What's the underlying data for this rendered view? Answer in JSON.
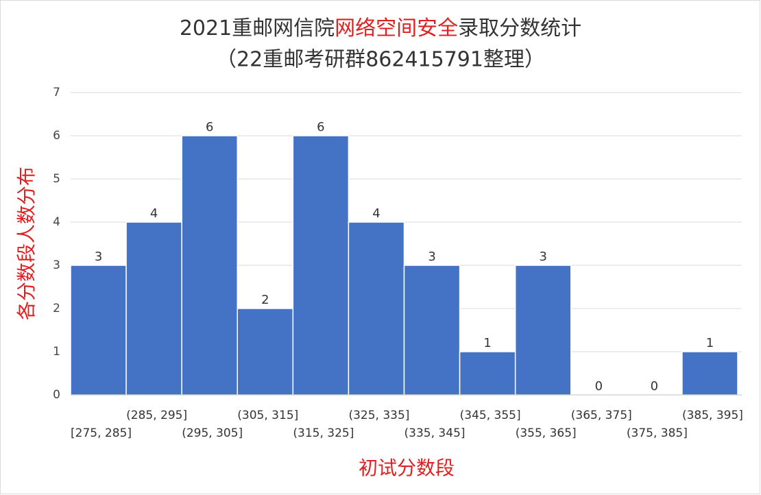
{
  "chart_data": {
    "type": "bar",
    "title": [
      "2021重邮网信院",
      "网络空间安全",
      "录取分数统计"
    ],
    "subtitle": "（22重邮考研群862415791整理）",
    "y_label": "各分数段人数分布",
    "x_label": "初试分数段",
    "categories": [
      "[275, 285]",
      "(285, 295]",
      "(295, 305]",
      "(305, 315]",
      "(315, 325]",
      "(325, 335]",
      "(335, 345]",
      "(345, 355]",
      "(355, 365]",
      "(365, 375]",
      "(375, 385]",
      "(385, 395]"
    ],
    "values": [
      3,
      4,
      6,
      2,
      6,
      4,
      3,
      1,
      3,
      0,
      0,
      1
    ],
    "color": "#4472c4",
    "ylim": [
      0,
      7
    ],
    "yticks": [
      0,
      1,
      2,
      3,
      4,
      5,
      6,
      7
    ],
    "grid": true
  }
}
